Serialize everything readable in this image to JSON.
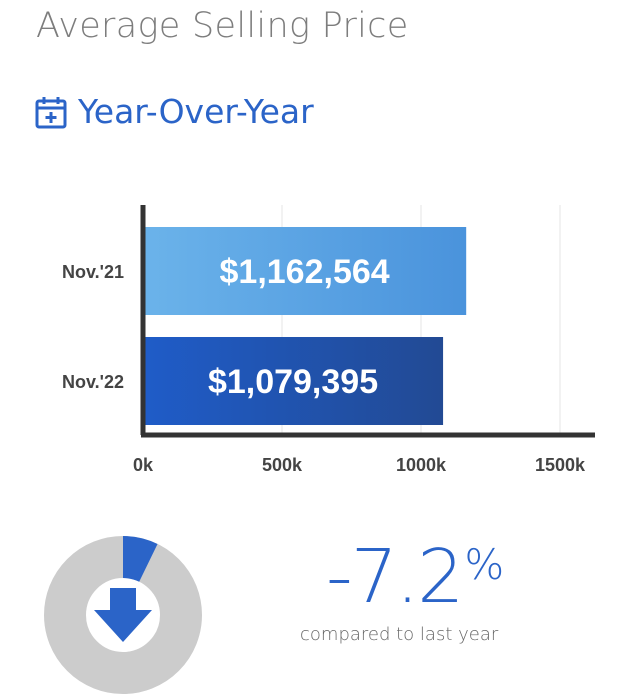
{
  "header": {
    "title": "Average Selling Price",
    "subtitle": "Year-Over-Year",
    "icon": "calendar-plus-icon"
  },
  "colors": {
    "accent": "#2b64c8",
    "bar_2021_start": "#6bb3ea",
    "bar_2021_end": "#4a93dc",
    "bar_2022_start": "#1f5cc8",
    "bar_2022_end": "#224a94",
    "donut_track": "#cccccc",
    "donut_fill": "#2b64c8"
  },
  "chart_data": {
    "type": "bar",
    "orientation": "horizontal",
    "categories": [
      "Nov.'21",
      "Nov.'22"
    ],
    "values": [
      1162564,
      1079395
    ],
    "data_labels": [
      "$1,162,564",
      "$1,079,395"
    ],
    "xlim": [
      0,
      1500000
    ],
    "xticks": [
      0,
      500000,
      1000000,
      1500000
    ],
    "xtick_labels": [
      "0k",
      "500k",
      "1000k",
      "1500k"
    ],
    "grid": true
  },
  "change": {
    "value": "-7.2",
    "unit": "%",
    "caption": "compared to last year",
    "percent": -7.2,
    "direction": "down",
    "icon": "arrow-down-icon"
  }
}
